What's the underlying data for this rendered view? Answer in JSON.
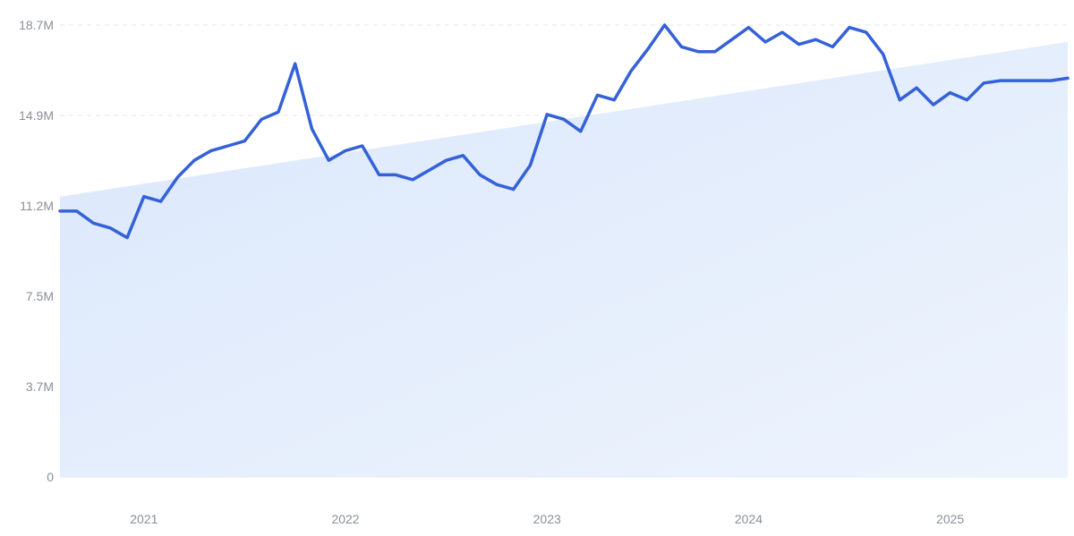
{
  "chart_data": {
    "type": "line",
    "title": "",
    "xlabel": "",
    "ylabel": "",
    "y_ticks": [
      "0",
      "3.7M",
      "7.5M",
      "11.2M",
      "14.9M",
      "18.7M"
    ],
    "x_ticks": [
      "2021",
      "2022",
      "2023",
      "2024",
      "2025"
    ],
    "ylim": [
      0,
      18700000
    ],
    "xlim": [
      "2020-08",
      "2025-08"
    ],
    "grid": true,
    "grid_style": "dashed horizontal",
    "line_color": "#3461d8",
    "trend_fill_color": "#dde9fb",
    "trend_line": {
      "start": 11600000,
      "end": 18000000
    },
    "series": [
      {
        "x": [
          "2020-08",
          "2020-09",
          "2020-10",
          "2020-11",
          "2020-12",
          "2021-01",
          "2021-02",
          "2021-03",
          "2021-04",
          "2021-05",
          "2021-06",
          "2021-07",
          "2021-08",
          "2021-09",
          "2021-10",
          "2021-11",
          "2021-12",
          "2022-01",
          "2022-02",
          "2022-03",
          "2022-04",
          "2022-05",
          "2022-06",
          "2022-07",
          "2022-08",
          "2022-09",
          "2022-10",
          "2022-11",
          "2022-12",
          "2023-01",
          "2023-02",
          "2023-03",
          "2023-04",
          "2023-05",
          "2023-06",
          "2023-07",
          "2023-08",
          "2023-09",
          "2023-10",
          "2023-11",
          "2023-12",
          "2024-01",
          "2024-02",
          "2024-03",
          "2024-04",
          "2024-05",
          "2024-06",
          "2024-07",
          "2024-08",
          "2024-09",
          "2024-10",
          "2024-11",
          "2024-12",
          "2025-01",
          "2025-02",
          "2025-03",
          "2025-04",
          "2025-05",
          "2025-06",
          "2025-07",
          "2025-08"
        ],
        "values": [
          11000000,
          11000000,
          10500000,
          10300000,
          9900000,
          11600000,
          11400000,
          12400000,
          13100000,
          13500000,
          13700000,
          13900000,
          14800000,
          15100000,
          17100000,
          14400000,
          13100000,
          13500000,
          13700000,
          12500000,
          12500000,
          12300000,
          12700000,
          13100000,
          13300000,
          12500000,
          12100000,
          11900000,
          12900000,
          15000000,
          14800000,
          14300000,
          15800000,
          15600000,
          16800000,
          17700000,
          18700000,
          17800000,
          17600000,
          17600000,
          18100000,
          18600000,
          18000000,
          18400000,
          17900000,
          18100000,
          17800000,
          18600000,
          18400000,
          17500000,
          15600000,
          16100000,
          15400000,
          15900000,
          15600000,
          16300000,
          16400000,
          16400000,
          16400000,
          16400000,
          16500000
        ]
      }
    ]
  }
}
